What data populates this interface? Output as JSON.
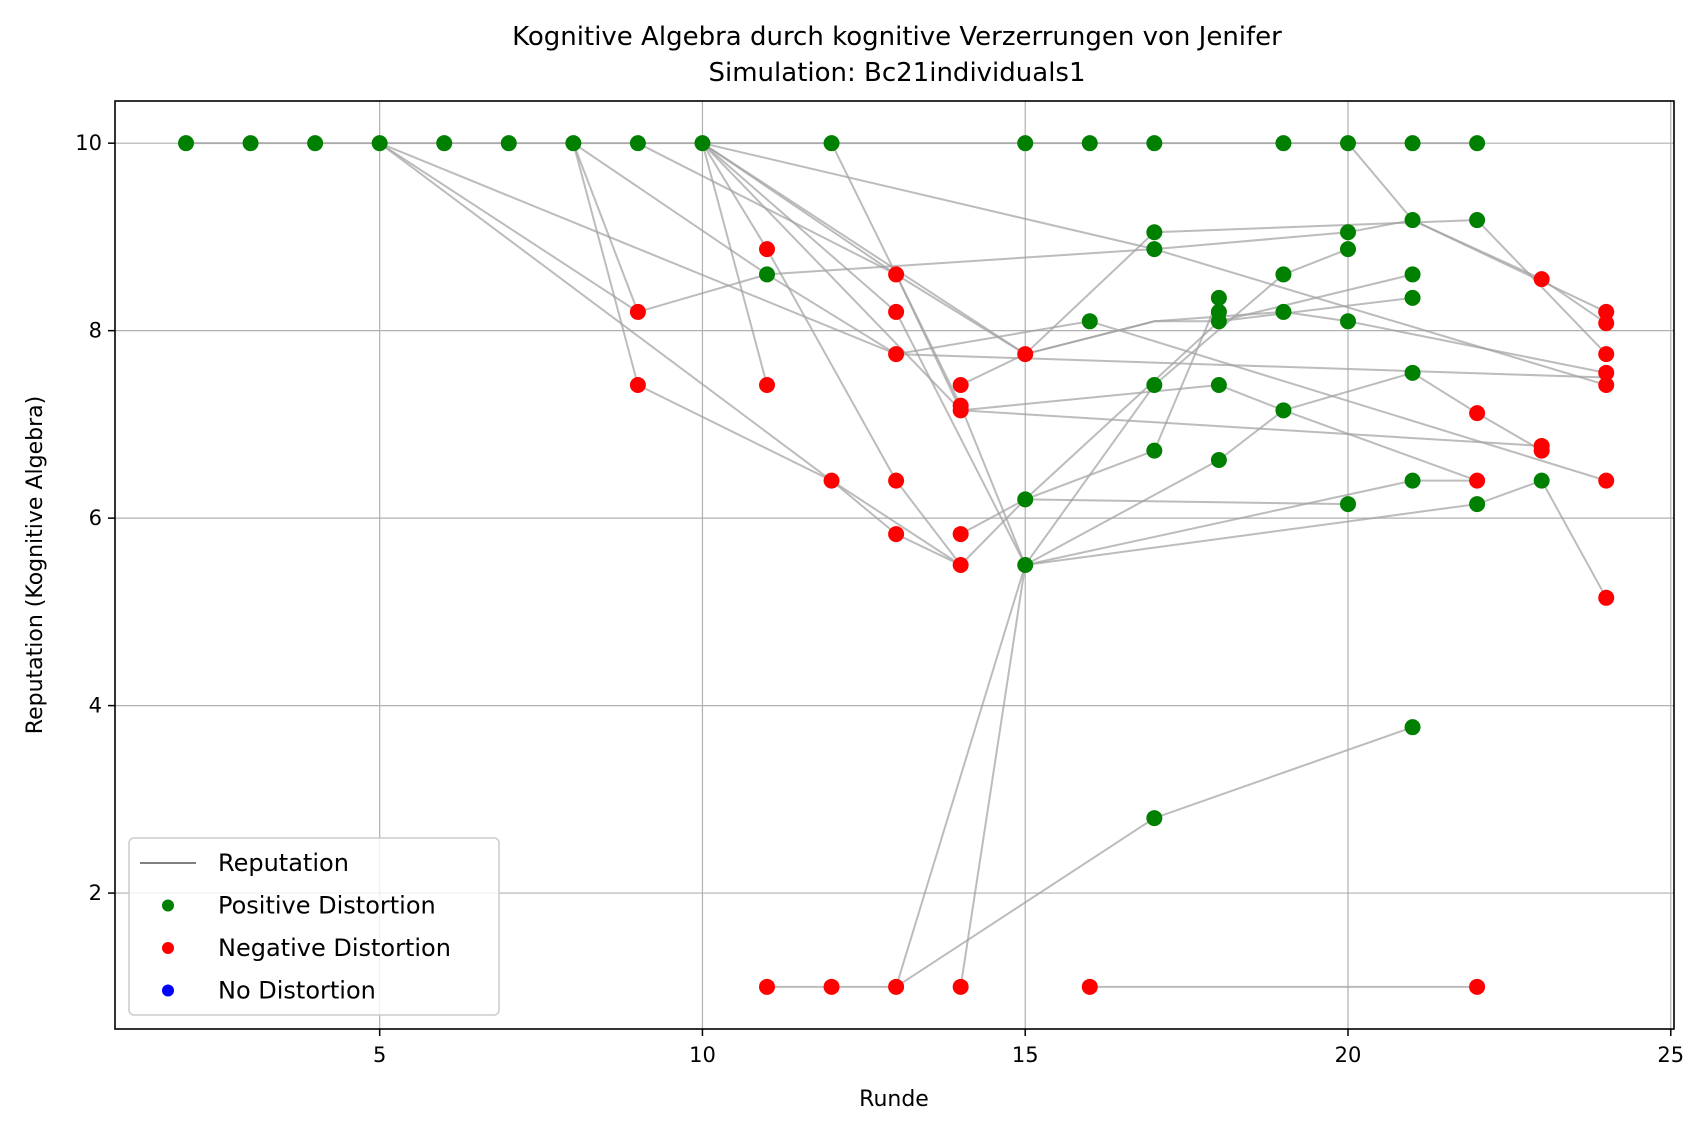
{
  "chart_data": {
    "type": "scatter",
    "title": "Kognitive Algebra durch kognitive Verzerrungen von Jenifer",
    "subtitle": "Simulation: Bc21individuals1",
    "xlabel": "Runde",
    "ylabel": "Reputation (Kognitive Algebra)",
    "xlim": [
      0.9,
      25.05
    ],
    "ylim": [
      0.55,
      10.45
    ],
    "xticks": [
      5,
      10,
      15,
      20,
      25
    ],
    "yticks": [
      2,
      4,
      6,
      8,
      10
    ],
    "grid": true,
    "legend_position": "lower-left",
    "legend": [
      {
        "label": "Reputation",
        "kind": "line",
        "color": "#808080"
      },
      {
        "label": "Positive Distortion",
        "kind": "marker",
        "color": "#008000"
      },
      {
        "label": "Negative Distortion",
        "kind": "marker",
        "color": "#ff0000"
      },
      {
        "label": "No Distortion",
        "kind": "marker",
        "color": "#0000ff"
      }
    ],
    "colors": {
      "positive": "#008000",
      "negative": "#ff0000",
      "none": "#0000ff",
      "line": "#808080"
    },
    "lines": [
      [
        [
          2,
          10
        ],
        [
          3,
          10
        ],
        [
          4,
          10
        ],
        [
          5,
          10
        ],
        [
          6,
          10
        ],
        [
          7,
          10
        ],
        [
          8,
          10
        ],
        [
          9,
          10
        ],
        [
          10,
          10
        ],
        [
          12,
          10
        ],
        [
          15,
          10
        ],
        [
          16,
          10
        ],
        [
          17,
          10
        ],
        [
          19,
          10
        ],
        [
          20,
          10
        ],
        [
          21,
          10
        ],
        [
          22,
          10
        ]
      ],
      [
        [
          8,
          10
        ],
        [
          11,
          8.6
        ],
        [
          13,
          7.75
        ],
        [
          24,
          7.5
        ]
      ],
      [
        [
          5,
          10
        ],
        [
          9,
          8.2
        ]
      ],
      [
        [
          5,
          10
        ],
        [
          13,
          7.75
        ]
      ],
      [
        [
          5,
          10
        ],
        [
          12,
          6.4
        ],
        [
          14,
          5.5
        ]
      ],
      [
        [
          8,
          10
        ],
        [
          9,
          7.42
        ],
        [
          12,
          6.4
        ],
        [
          13,
          5.83
        ],
        [
          14,
          5.5
        ],
        [
          15,
          6.2
        ],
        [
          17,
          6.72
        ],
        [
          18,
          8.35
        ]
      ],
      [
        [
          8,
          10
        ],
        [
          9,
          8.2
        ],
        [
          11,
          8.6
        ],
        [
          17,
          8.87
        ],
        [
          20,
          9.05
        ],
        [
          21,
          9.18
        ],
        [
          23,
          8.55
        ],
        [
          24,
          8.08
        ]
      ],
      [
        [
          9,
          10
        ],
        [
          13,
          8.6
        ],
        [
          15,
          7.75
        ],
        [
          17,
          8.1
        ],
        [
          19,
          8.2
        ],
        [
          20,
          8.1
        ],
        [
          24,
          7.55
        ]
      ],
      [
        [
          10,
          10
        ],
        [
          11,
          8.87
        ],
        [
          13,
          6.4
        ],
        [
          14,
          5.5
        ]
      ],
      [
        [
          10,
          10
        ],
        [
          11,
          7.42
        ]
      ],
      [
        [
          10,
          10
        ],
        [
          13,
          8.2
        ],
        [
          15,
          5.5
        ],
        [
          18,
          6.62
        ],
        [
          19,
          7.15
        ],
        [
          21,
          7.55
        ],
        [
          22,
          7.12
        ],
        [
          23,
          6.72
        ]
      ],
      [
        [
          10,
          10
        ],
        [
          13,
          8.6
        ],
        [
          14,
          7.15
        ],
        [
          18,
          7.42
        ],
        [
          19,
          7.15
        ],
        [
          22,
          6.4
        ]
      ],
      [
        [
          10,
          10
        ],
        [
          15,
          7.75
        ],
        [
          17,
          8.1
        ],
        [
          18,
          8.1
        ],
        [
          21,
          8.35
        ]
      ],
      [
        [
          10,
          10
        ],
        [
          14,
          7.15
        ],
        [
          23,
          6.77
        ]
      ],
      [
        [
          10,
          10
        ],
        [
          17,
          8.87
        ],
        [
          24,
          7.42
        ]
      ],
      [
        [
          12,
          10
        ],
        [
          14,
          7.2
        ],
        [
          15,
          5.5
        ],
        [
          17,
          7.42
        ],
        [
          19,
          8.6
        ],
        [
          20,
          8.87
        ]
      ],
      [
        [
          13,
          1
        ],
        [
          15,
          5.5
        ],
        [
          21,
          6.4
        ],
        [
          22,
          6.4
        ]
      ],
      [
        [
          13,
          1
        ],
        [
          17,
          2.8
        ],
        [
          21,
          3.77
        ]
      ],
      [
        [
          14,
          1
        ],
        [
          15,
          5.5
        ],
        [
          22,
          6.15
        ],
        [
          23,
          6.4
        ],
        [
          24,
          5.15
        ]
      ],
      [
        [
          14,
          5.83
        ],
        [
          15,
          6.2
        ],
        [
          18,
          8.1
        ],
        [
          21,
          8.6
        ]
      ],
      [
        [
          14,
          7.42
        ],
        [
          15,
          7.75
        ],
        [
          17,
          9.05
        ],
        [
          22,
          9.18
        ]
      ],
      [
        [
          11,
          1
        ],
        [
          12,
          1
        ],
        [
          13,
          1
        ]
      ],
      [
        [
          16,
          1
        ],
        [
          22,
          1
        ]
      ],
      [
        [
          20,
          10
        ],
        [
          21,
          9.18
        ],
        [
          24,
          8.2
        ]
      ],
      [
        [
          15,
          6.2
        ],
        [
          20,
          6.15
        ]
      ],
      [
        [
          22,
          9.18
        ],
        [
          24,
          7.75
        ]
      ],
      [
        [
          13,
          7.75
        ],
        [
          16,
          8.1
        ],
        [
          24,
          6.4
        ]
      ]
    ],
    "positive_points": [
      [
        2,
        10
      ],
      [
        3,
        10
      ],
      [
        4,
        10
      ],
      [
        5,
        10
      ],
      [
        6,
        10
      ],
      [
        7,
        10
      ],
      [
        8,
        10
      ],
      [
        9,
        10
      ],
      [
        10,
        10
      ],
      [
        12,
        10
      ],
      [
        15,
        10
      ],
      [
        16,
        10
      ],
      [
        17,
        10
      ],
      [
        19,
        10
      ],
      [
        20,
        10
      ],
      [
        21,
        10
      ],
      [
        22,
        10
      ],
      [
        11,
        8.6
      ],
      [
        16,
        8.1
      ],
      [
        17,
        9.05
      ],
      [
        17,
        8.87
      ],
      [
        17,
        7.42
      ],
      [
        17,
        6.72
      ],
      [
        17,
        2.8
      ],
      [
        18,
        8.35
      ],
      [
        18,
        8.2
      ],
      [
        18,
        8.1
      ],
      [
        18,
        7.42
      ],
      [
        18,
        6.62
      ],
      [
        19,
        8.6
      ],
      [
        19,
        8.2
      ],
      [
        19,
        7.15
      ],
      [
        20,
        9.05
      ],
      [
        20,
        8.87
      ],
      [
        20,
        8.1
      ],
      [
        20,
        6.15
      ],
      [
        21,
        9.18
      ],
      [
        21,
        8.6
      ],
      [
        21,
        8.35
      ],
      [
        21,
        7.55
      ],
      [
        21,
        6.4
      ],
      [
        21,
        3.77
      ],
      [
        22,
        9.18
      ],
      [
        22,
        6.15
      ],
      [
        23,
        6.4
      ],
      [
        15,
        6.2
      ],
      [
        15,
        5.5
      ]
    ],
    "negative_points": [
      [
        9,
        8.2
      ],
      [
        9,
        7.42
      ],
      [
        11,
        8.87
      ],
      [
        11,
        7.42
      ],
      [
        11,
        1
      ],
      [
        12,
        6.4
      ],
      [
        12,
        1
      ],
      [
        13,
        8.6
      ],
      [
        13,
        8.2
      ],
      [
        13,
        7.75
      ],
      [
        13,
        6.4
      ],
      [
        13,
        5.83
      ],
      [
        13,
        1
      ],
      [
        14,
        7.42
      ],
      [
        14,
        7.2
      ],
      [
        14,
        7.15
      ],
      [
        14,
        5.83
      ],
      [
        14,
        5.5
      ],
      [
        14,
        1
      ],
      [
        15,
        7.75
      ],
      [
        16,
        1
      ],
      [
        22,
        7.12
      ],
      [
        22,
        6.4
      ],
      [
        22,
        1
      ],
      [
        23,
        8.55
      ],
      [
        23,
        6.77
      ],
      [
        23,
        6.72
      ],
      [
        24,
        8.2
      ],
      [
        24,
        8.08
      ],
      [
        24,
        7.75
      ],
      [
        24,
        7.55
      ],
      [
        24,
        7.42
      ],
      [
        24,
        6.4
      ],
      [
        24,
        5.15
      ]
    ],
    "none_points": []
  }
}
